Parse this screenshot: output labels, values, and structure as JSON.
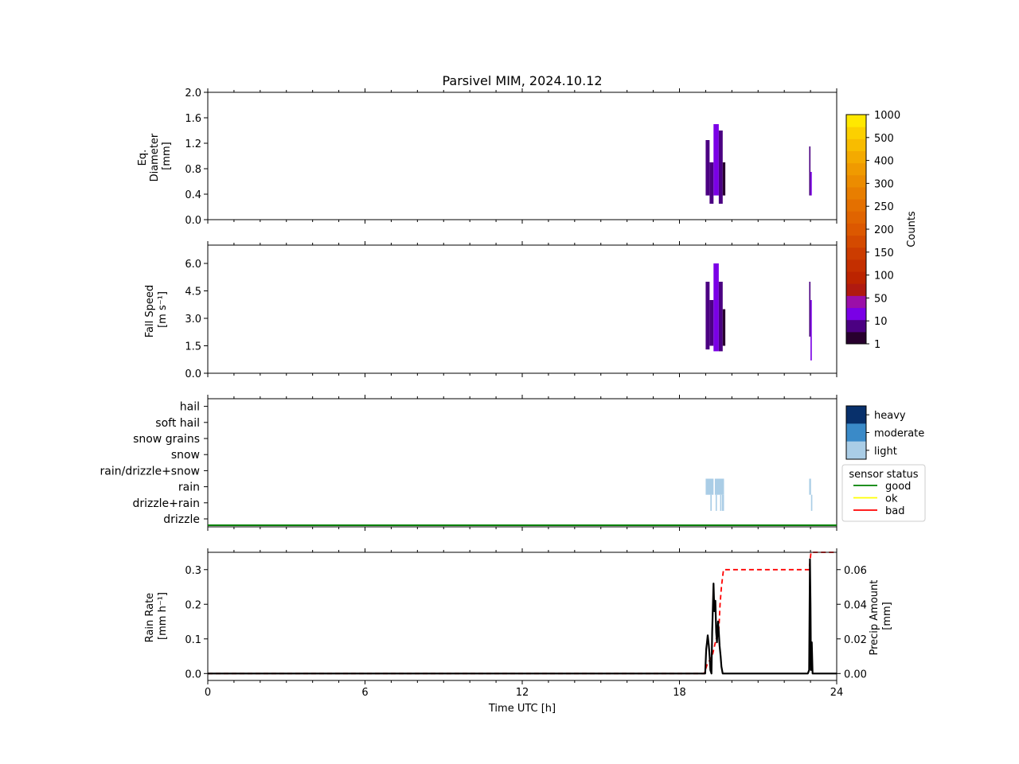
{
  "title": "Parsivel MIM, 2024.10.12",
  "xaxis": {
    "label": "Time UTC [h]",
    "range": [
      0,
      24
    ],
    "ticks": [
      0,
      6,
      12,
      18,
      24
    ]
  },
  "chart_data": [
    {
      "type": "heatmap",
      "name": "diameter",
      "ylabel": [
        "Eq.",
        "Diameter",
        "[mm]"
      ],
      "ylim": [
        0,
        2
      ],
      "yticks": [
        "0.0",
        "0.4",
        "0.8",
        "1.2",
        "1.6",
        "2.0"
      ],
      "ytick_values": [
        0,
        0.4,
        0.8,
        1.2,
        1.6,
        2.0
      ],
      "cells": [
        {
          "t0": 19.0,
          "t1": 19.15,
          "y0": 0.38,
          "y1": 1.25,
          "count": 12
        },
        {
          "t0": 19.15,
          "t1": 19.3,
          "y0": 0.25,
          "y1": 0.9,
          "count": 6
        },
        {
          "t0": 19.3,
          "t1": 19.5,
          "y0": 0.38,
          "y1": 1.5,
          "count": 20
        },
        {
          "t0": 19.5,
          "t1": 19.65,
          "y0": 0.25,
          "y1": 1.4,
          "count": 8
        },
        {
          "t0": 19.65,
          "t1": 19.75,
          "y0": 0.38,
          "y1": 0.9,
          "count": 4
        },
        {
          "t0": 22.95,
          "t1": 23.0,
          "y0": 0.38,
          "y1": 1.15,
          "count": 10
        },
        {
          "t0": 23.0,
          "t1": 23.05,
          "y0": 0.38,
          "y1": 0.75,
          "count": 30
        }
      ]
    },
    {
      "type": "heatmap",
      "name": "fall-speed",
      "ylabel": [
        "Fall Speed",
        "[m s⁻¹]"
      ],
      "ylim": [
        0,
        7
      ],
      "yticks": [
        "0.0",
        "1.5",
        "3.0",
        "4.5",
        "6.0"
      ],
      "ytick_values": [
        0,
        1.5,
        3.0,
        4.5,
        6.0
      ],
      "cells": [
        {
          "t0": 19.0,
          "t1": 19.15,
          "y0": 1.3,
          "y1": 5.0,
          "count": 12
        },
        {
          "t0": 19.15,
          "t1": 19.3,
          "y0": 1.5,
          "y1": 4.0,
          "count": 6
        },
        {
          "t0": 19.3,
          "t1": 19.5,
          "y0": 1.2,
          "y1": 6.0,
          "count": 20
        },
        {
          "t0": 19.5,
          "t1": 19.65,
          "y0": 1.2,
          "y1": 5.0,
          "count": 8
        },
        {
          "t0": 19.65,
          "t1": 19.75,
          "y0": 1.5,
          "y1": 3.5,
          "count": 4
        },
        {
          "t0": 22.95,
          "t1": 23.0,
          "y0": 2.0,
          "y1": 5.0,
          "count": 10
        },
        {
          "t0": 23.0,
          "t1": 23.05,
          "y0": 0.7,
          "y1": 4.0,
          "count": 30
        }
      ]
    },
    {
      "type": "heatmap",
      "name": "precip-type",
      "categories": [
        "drizzle",
        "drizzle+rain",
        "rain",
        "rain/drizzle+snow",
        "snow",
        "snow grains",
        "soft hail",
        "hail"
      ],
      "intensity_legend": [
        "heavy",
        "moderate",
        "light"
      ],
      "intensity_colors": [
        "#08306b",
        "#3a8ac8",
        "#aacde6"
      ],
      "events": [
        {
          "t0": 19.0,
          "t1": 19.3,
          "category": "rain",
          "intensity": "light"
        },
        {
          "t0": 19.35,
          "t1": 19.7,
          "category": "rain",
          "intensity": "light"
        },
        {
          "t0": 19.18,
          "t1": 19.23,
          "category": "drizzle+rain",
          "intensity": "light"
        },
        {
          "t0": 19.38,
          "t1": 19.43,
          "category": "drizzle+rain",
          "intensity": "light"
        },
        {
          "t0": 19.55,
          "t1": 19.6,
          "category": "drizzle+rain",
          "intensity": "light"
        },
        {
          "t0": 19.62,
          "t1": 19.7,
          "category": "drizzle+rain",
          "intensity": "light"
        },
        {
          "t0": 22.95,
          "t1": 23.02,
          "category": "rain",
          "intensity": "light"
        },
        {
          "t0": 23.02,
          "t1": 23.07,
          "category": "drizzle+rain",
          "intensity": "light"
        }
      ],
      "sensor_status": {
        "title": "sensor status",
        "entries": [
          {
            "label": "good",
            "color": "#008000"
          },
          {
            "label": "ok",
            "color": "#ffff00"
          },
          {
            "label": "bad",
            "color": "#ff0000"
          }
        ],
        "line_value": "good"
      }
    },
    {
      "type": "line",
      "name": "rain-rate",
      "ylabel": [
        "Rain Rate",
        "[mm h⁻¹]"
      ],
      "ylim": [
        -0.02,
        0.35
      ],
      "yticks": [
        "0.0",
        "0.1",
        "0.2",
        "0.3"
      ],
      "ytick_values": [
        0,
        0.1,
        0.2,
        0.3
      ],
      "y2label": [
        "Precip Amount",
        "[mm]"
      ],
      "y2lim": [
        -0.004,
        0.07
      ],
      "y2ticks": [
        "0.00",
        "0.02",
        "0.04",
        "0.06"
      ],
      "y2tick_values": [
        0,
        0.02,
        0.04,
        0.06
      ],
      "series": [
        {
          "label": "rain rate",
          "color": "#000000",
          "dash": "",
          "axis": "left",
          "x": [
            0,
            18.98,
            19.02,
            19.05,
            19.08,
            19.12,
            19.15,
            19.18,
            19.22,
            19.25,
            19.3,
            19.33,
            19.37,
            19.4,
            19.43,
            19.47,
            19.5,
            19.53,
            19.57,
            19.6,
            19.65,
            19.7,
            19.75,
            22.9,
            22.95,
            22.98,
            23.0,
            23.02,
            23.05,
            23.08,
            24
          ],
          "y": [
            0,
            0,
            0.07,
            0.09,
            0.11,
            0.08,
            0.05,
            0.01,
            0.0,
            0.12,
            0.26,
            0.18,
            0.21,
            0.12,
            0.09,
            0.15,
            0.12,
            0.08,
            0.05,
            0.02,
            0.0,
            0.0,
            0.0,
            0.0,
            0.01,
            0.33,
            0.2,
            0.01,
            0.09,
            0.0,
            0
          ]
        },
        {
          "label": "precip amount",
          "color": "#ff0000",
          "dash": "6,4",
          "axis": "right",
          "x": [
            0,
            18.95,
            19.05,
            19.25,
            19.4,
            19.5,
            19.55,
            19.6,
            19.68,
            22.95,
            23.02,
            24
          ],
          "y": [
            0,
            0,
            0.005,
            0.01,
            0.02,
            0.025,
            0.04,
            0.05,
            0.06,
            0.06,
            0.07,
            0.07
          ]
        }
      ]
    }
  ],
  "colorbar": {
    "label": "Counts",
    "ticks": [
      "1",
      "10",
      "50",
      "100",
      "150",
      "200",
      "250",
      "300",
      "400",
      "500",
      "1000"
    ],
    "colors": [
      "#28002e",
      "#4b0082",
      "#7a00e6",
      "#9b0fa8",
      "#b01a10",
      "#bc2400",
      "#c42f00",
      "#cc3c00",
      "#d44a00",
      "#dc5800",
      "#e06400",
      "#e47000",
      "#e87e00",
      "#ec8c00",
      "#f09a00",
      "#f4aa00",
      "#f8bc00",
      "#fcd000",
      "#ffe800"
    ]
  }
}
